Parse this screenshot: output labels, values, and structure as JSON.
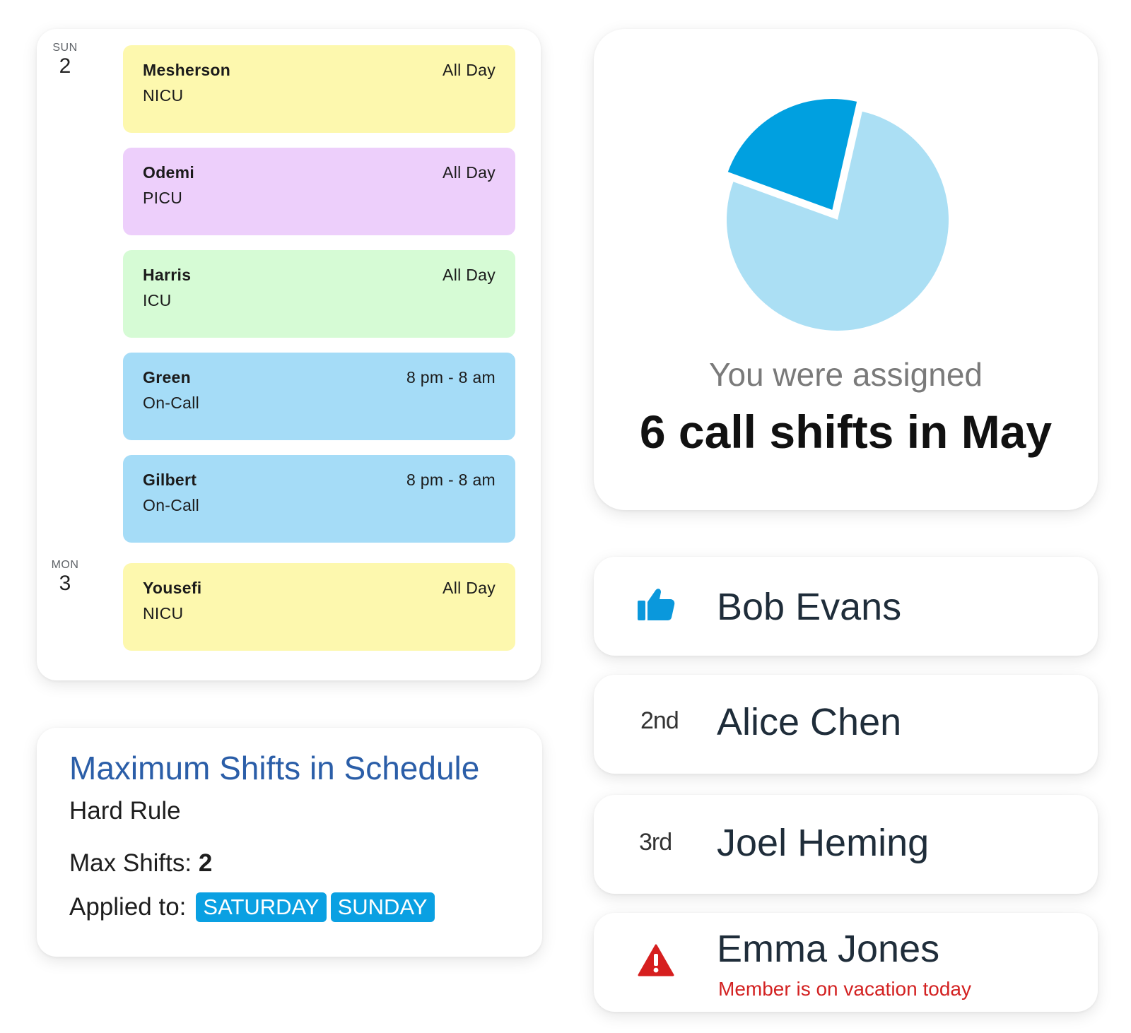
{
  "calendar": {
    "days": [
      {
        "dow": "SUN",
        "num": "2"
      },
      {
        "dow": "MON",
        "num": "3"
      }
    ],
    "shifts": [
      {
        "name": "Mesherson",
        "unit": "NICU",
        "time": "All Day",
        "color": "#fdf8ae"
      },
      {
        "name": "Odemi",
        "unit": "PICU",
        "time": "All Day",
        "color": "#edcffb"
      },
      {
        "name": "Harris",
        "unit": "ICU",
        "time": "All Day",
        "color": "#d6fbd5"
      },
      {
        "name": "Green",
        "unit": "On-Call",
        "time": "8 pm - 8 am",
        "color": "#a5dcf7"
      },
      {
        "name": "Gilbert",
        "unit": "On-Call",
        "time": "8 pm - 8 am",
        "color": "#a5dcf7"
      },
      {
        "name": "Yousefi",
        "unit": "NICU",
        "time": "All Day",
        "color": "#fdf8ae"
      }
    ]
  },
  "rule": {
    "title": "Maximum Shifts in Schedule",
    "type": "Hard Rule",
    "max_label": "Max Shifts:",
    "max_value": "2",
    "applied_label": "Applied to:",
    "tags": [
      "SATURDAY",
      "SUNDAY"
    ],
    "tag_color": "#0aa0e2",
    "title_color": "#2b5ea8"
  },
  "assignment": {
    "subtitle": "You were assigned",
    "headline": "6 call shifts in May",
    "pie": {
      "slices": [
        {
          "fraction": 0.23,
          "color": "#00a0e0"
        },
        {
          "fraction": 0.77,
          "color": "#abdff4"
        }
      ]
    }
  },
  "members": [
    {
      "rank": "",
      "name": "Bob Evans",
      "icon": "thumbs-up-icon",
      "note": ""
    },
    {
      "rank": "2nd",
      "name": "Alice Chen",
      "icon": "",
      "note": ""
    },
    {
      "rank": "3rd",
      "name": "Joel Heming",
      "icon": "",
      "note": ""
    },
    {
      "rank": "",
      "name": "Emma Jones",
      "icon": "warning-icon",
      "note": "Member is on vacation today"
    }
  ]
}
